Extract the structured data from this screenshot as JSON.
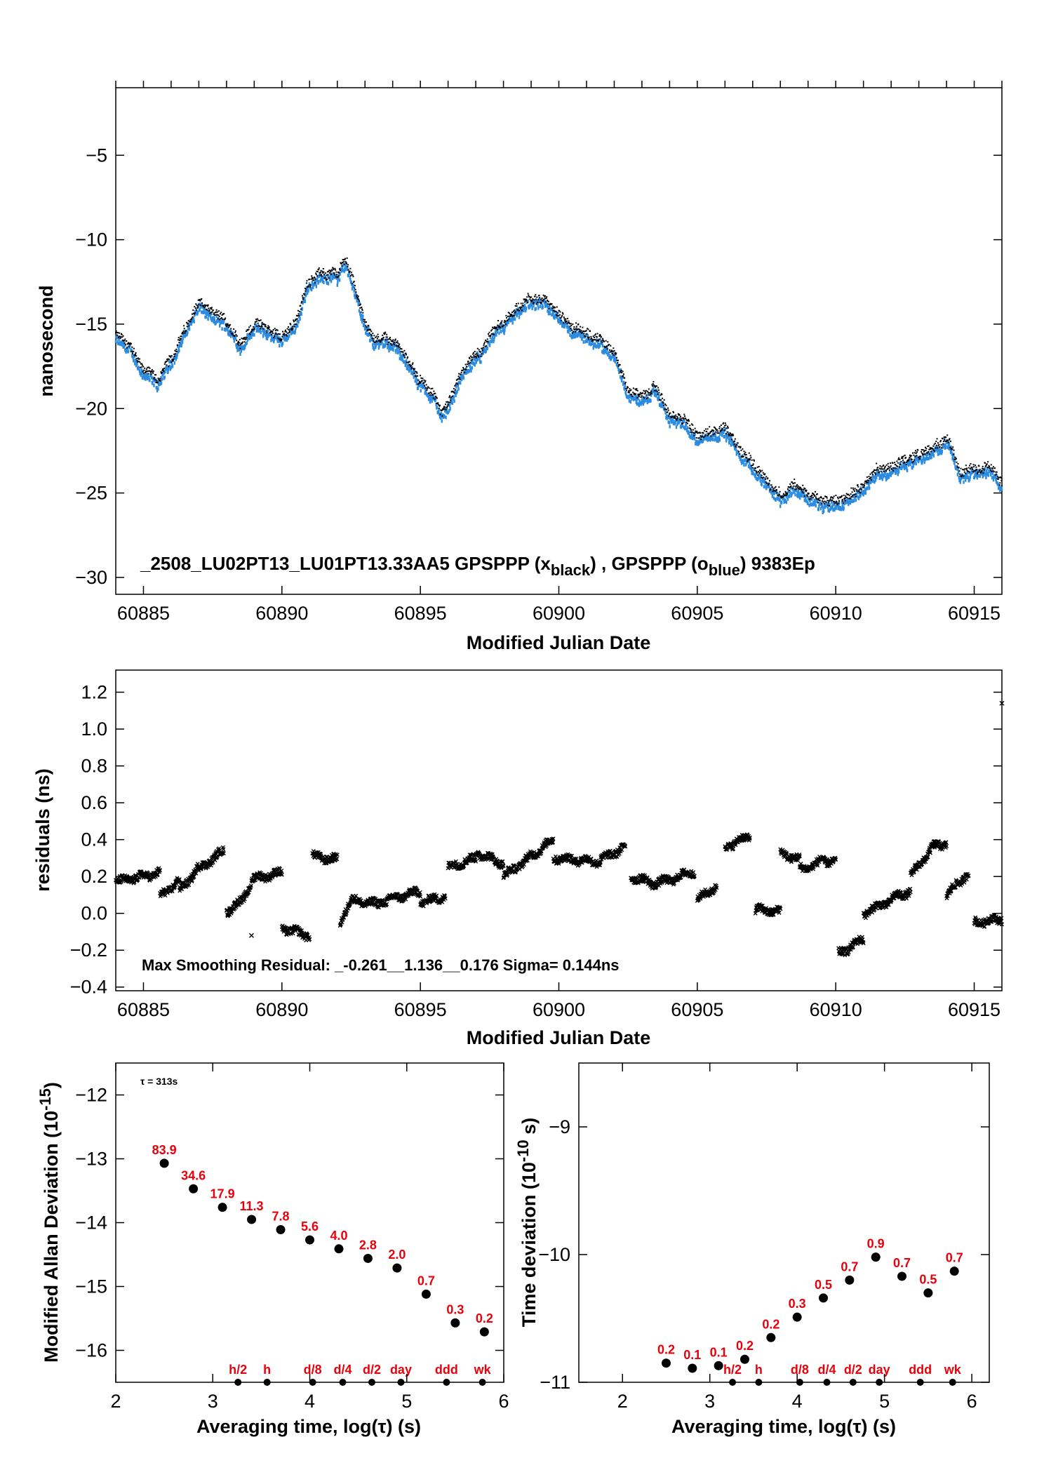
{
  "colors": {
    "black_series": "#000000",
    "blue_series": "#2a8be0",
    "labels": "#e8000b"
  },
  "panels": {
    "p1": {
      "ylabel": "nanosecond",
      "xlabel": "Modified Julian Date",
      "annotation": {
        "prefix": "_2508_LU02PT13_LU01PT13.33AA5     GPSPPP (x",
        "sub1": "black",
        "middle": ") ,  GPSPPP (o",
        "sub2": "blue",
        "suffix": ")  9383Ep"
      }
    },
    "p2": {
      "ylabel": "residuals (ns)",
      "xlabel": "Modified Julian Date",
      "annotation": "Max Smoothing Residual: _-0.261__1.136__0.176  Sigma= 0.144ns"
    },
    "p3": {
      "ylabel_main": "Modified Allan Deviation (10",
      "ylabel_sup": "-15",
      "ylabel_close": ")",
      "xlabel": "Averaging time, log(τ) (s)",
      "annotation": "τ = 313s"
    },
    "p4": {
      "ylabel_main": "Time deviation (10",
      "ylabel_sup": "-10",
      "ylabel_close": " s)",
      "xlabel": "Averaging time, log(τ) (s)"
    }
  },
  "chart_data": [
    {
      "type": "scatter",
      "xlabel": "Modified Julian Date",
      "ylabel": "nanosecond",
      "xlim": [
        60884,
        60916
      ],
      "ylim": [
        -31,
        -1
      ],
      "xticks": [
        60885,
        60890,
        60895,
        60900,
        60905,
        60910,
        60915
      ],
      "yticks": [
        -30,
        -25,
        -20,
        -15,
        -10,
        -5
      ],
      "series": [
        {
          "name": "GPSPPP (x black)",
          "color": "#000000",
          "points": [
            [
              60884.0,
              -15.6
            ],
            [
              60884.5,
              -16.3
            ],
            [
              60885.0,
              -17.6
            ],
            [
              60885.5,
              -18.4
            ],
            [
              60886.0,
              -17.0
            ],
            [
              60886.5,
              -15.3
            ],
            [
              60887.0,
              -13.7
            ],
            [
              60887.5,
              -14.4
            ],
            [
              60888.0,
              -14.8
            ],
            [
              60888.5,
              -16.1
            ],
            [
              60889.0,
              -14.9
            ],
            [
              60889.5,
              -15.3
            ],
            [
              60890.0,
              -15.8
            ],
            [
              60890.5,
              -14.8
            ],
            [
              60891.0,
              -12.3
            ],
            [
              60891.5,
              -11.9
            ],
            [
              60892.0,
              -12.0
            ],
            [
              60892.3,
              -11.1
            ],
            [
              60892.7,
              -13.0
            ],
            [
              60893.0,
              -15.1
            ],
            [
              60893.5,
              -16.0
            ],
            [
              60894.0,
              -15.8
            ],
            [
              60894.5,
              -17.1
            ],
            [
              60895.0,
              -18.3
            ],
            [
              60895.5,
              -19.2
            ],
            [
              60895.8,
              -20.3
            ],
            [
              60896.2,
              -18.9
            ],
            [
              60896.5,
              -17.8
            ],
            [
              60897.0,
              -16.9
            ],
            [
              60897.5,
              -15.8
            ],
            [
              60898.0,
              -14.9
            ],
            [
              60898.5,
              -14.2
            ],
            [
              60899.0,
              -13.4
            ],
            [
              60899.5,
              -13.7
            ],
            [
              60900.0,
              -14.3
            ],
            [
              60900.5,
              -15.2
            ],
            [
              60901.0,
              -15.6
            ],
            [
              60901.5,
              -15.9
            ],
            [
              60902.0,
              -16.5
            ],
            [
              60902.5,
              -18.9
            ],
            [
              60903.0,
              -19.3
            ],
            [
              60903.5,
              -18.8
            ],
            [
              60904.0,
              -20.4
            ],
            [
              60904.5,
              -20.6
            ],
            [
              60905.0,
              -21.6
            ],
            [
              60905.5,
              -21.3
            ],
            [
              60906.0,
              -21.1
            ],
            [
              60906.5,
              -22.4
            ],
            [
              60907.0,
              -23.3
            ],
            [
              60907.5,
              -24.2
            ],
            [
              60908.0,
              -25.1
            ],
            [
              60908.5,
              -24.4
            ],
            [
              60909.0,
              -25.0
            ],
            [
              60909.5,
              -25.5
            ],
            [
              60910.0,
              -25.6
            ],
            [
              60910.5,
              -25.1
            ],
            [
              60911.0,
              -24.4
            ],
            [
              60911.5,
              -23.7
            ],
            [
              60912.0,
              -23.4
            ],
            [
              60912.5,
              -23.0
            ],
            [
              60913.0,
              -22.7
            ],
            [
              60913.5,
              -22.4
            ],
            [
              60914.0,
              -21.6
            ],
            [
              60914.5,
              -23.8
            ],
            [
              60915.0,
              -23.3
            ],
            [
              60915.5,
              -23.4
            ],
            [
              60916.0,
              -24.3
            ]
          ]
        },
        {
          "name": "GPSPPP (o blue)",
          "color": "#2a8be0",
          "offset": -0.35
        }
      ]
    },
    {
      "type": "scatter",
      "xlabel": "Modified Julian Date",
      "ylabel": "residuals (ns)",
      "xlim": [
        60884,
        60916
      ],
      "ylim": [
        -0.42,
        1.32
      ],
      "xticks": [
        60885,
        60890,
        60895,
        60900,
        60905,
        60910,
        60915
      ],
      "yticks": [
        -0.4,
        -0.2,
        0.0,
        0.2,
        0.4,
        0.6,
        0.8,
        1.0,
        1.2
      ],
      "segments": [
        [
          60884.0,
          60885.6,
          0.17,
          0.22
        ],
        [
          60885.6,
          60886.3,
          0.09,
          0.18
        ],
        [
          60886.3,
          60887.0,
          0.12,
          0.25
        ],
        [
          60887.0,
          60887.9,
          0.24,
          0.34
        ],
        [
          60888.0,
          60888.6,
          0.01,
          0.07
        ],
        [
          60888.6,
          60889.0,
          0.08,
          0.2
        ],
        [
          60889.0,
          60890.0,
          0.19,
          0.22
        ],
        [
          60890.0,
          60891.0,
          -0.08,
          -0.12
        ],
        [
          60891.1,
          60892.0,
          0.31,
          0.29
        ],
        [
          60892.1,
          60892.5,
          -0.05,
          0.08
        ],
        [
          60892.5,
          60893.5,
          0.07,
          0.05
        ],
        [
          60893.5,
          60894.5,
          0.06,
          0.1
        ],
        [
          60894.5,
          60895.0,
          0.1,
          0.12
        ],
        [
          60895.0,
          60895.9,
          0.06,
          0.09
        ],
        [
          60896.0,
          60897.0,
          0.25,
          0.3
        ],
        [
          60897.0,
          60898.0,
          0.33,
          0.27
        ],
        [
          60898.0,
          60899.0,
          0.2,
          0.31
        ],
        [
          60899.0,
          60899.8,
          0.31,
          0.4
        ],
        [
          60899.8,
          60901.5,
          0.3,
          0.28
        ],
        [
          60901.5,
          60902.4,
          0.29,
          0.36
        ],
        [
          60902.6,
          60903.3,
          0.2,
          0.17
        ],
        [
          60903.3,
          60904.0,
          0.16,
          0.18
        ],
        [
          60904.0,
          60904.9,
          0.18,
          0.23
        ],
        [
          60905.0,
          60905.7,
          0.07,
          0.15
        ],
        [
          60906.0,
          60906.9,
          0.36,
          0.42
        ],
        [
          60907.1,
          60908.0,
          0.02,
          0.01
        ],
        [
          60908.0,
          60908.7,
          0.33,
          0.29
        ],
        [
          60908.7,
          60909.4,
          0.24,
          0.27
        ],
        [
          60909.4,
          60910.0,
          0.29,
          0.28
        ],
        [
          60910.1,
          60911.0,
          -0.22,
          -0.14
        ],
        [
          60911.0,
          60912.0,
          0.0,
          0.07
        ],
        [
          60912.0,
          60912.7,
          0.08,
          0.12
        ],
        [
          60912.7,
          60913.5,
          0.2,
          0.36
        ],
        [
          60913.5,
          60914.0,
          0.36,
          0.38
        ],
        [
          60914.0,
          60914.8,
          0.1,
          0.22
        ],
        [
          60915.0,
          60916.0,
          -0.05,
          -0.03
        ]
      ],
      "outliers": [
        [
          60888.9,
          -0.12
        ],
        [
          60916.0,
          1.14
        ]
      ]
    },
    {
      "type": "scatter",
      "xlabel": "Averaging time, log(τ) (s)",
      "ylabel": "Modified Allan Deviation (10^-15)",
      "xlim": [
        2,
        6
      ],
      "ylim": [
        -16.5,
        -11.5
      ],
      "xticks": [
        2,
        3,
        4,
        5,
        6
      ],
      "yticks": [
        -16,
        -15,
        -14,
        -13,
        -12
      ],
      "points": [
        {
          "x": 2.5,
          "y": -13.07,
          "label": "83.9"
        },
        {
          "x": 2.8,
          "y": -13.47,
          "label": "34.6"
        },
        {
          "x": 3.1,
          "y": -13.76,
          "label": "17.9"
        },
        {
          "x": 3.4,
          "y": -13.95,
          "label": "11.3"
        },
        {
          "x": 3.7,
          "y": -14.11,
          "label": "7.8"
        },
        {
          "x": 4.0,
          "y": -14.27,
          "label": "5.6"
        },
        {
          "x": 4.3,
          "y": -14.41,
          "label": "4.0"
        },
        {
          "x": 4.6,
          "y": -14.56,
          "label": "2.8"
        },
        {
          "x": 4.9,
          "y": -14.71,
          "label": "2.0"
        },
        {
          "x": 5.2,
          "y": -15.12,
          "label": "0.7"
        },
        {
          "x": 5.5,
          "y": -15.57,
          "label": "0.3"
        },
        {
          "x": 5.8,
          "y": -15.71,
          "label": "0.2"
        }
      ],
      "markers": [
        {
          "x": 3.26,
          "label": "h/2"
        },
        {
          "x": 3.56,
          "label": "h"
        },
        {
          "x": 4.03,
          "label": "d/8"
        },
        {
          "x": 4.34,
          "label": "d/4"
        },
        {
          "x": 4.64,
          "label": "d/2"
        },
        {
          "x": 4.94,
          "label": "day"
        },
        {
          "x": 5.41,
          "label": "ddd"
        },
        {
          "x": 5.78,
          "label": "wk"
        }
      ]
    },
    {
      "type": "scatter",
      "xlabel": "Averaging time, log(τ) (s)",
      "ylabel": "Time deviation (10^-10 s)",
      "xlim": [
        1.5,
        6.2
      ],
      "ylim": [
        -11.0,
        -8.5
      ],
      "xticks": [
        2,
        3,
        4,
        5,
        6
      ],
      "yticks": [
        -11,
        -10,
        -9
      ],
      "points": [
        {
          "x": 2.5,
          "y": -10.85,
          "label": "0.2"
        },
        {
          "x": 2.8,
          "y": -10.89,
          "label": "0.1"
        },
        {
          "x": 3.1,
          "y": -10.87,
          "label": "0.1"
        },
        {
          "x": 3.4,
          "y": -10.82,
          "label": "0.2"
        },
        {
          "x": 3.7,
          "y": -10.65,
          "label": "0.2"
        },
        {
          "x": 4.0,
          "y": -10.49,
          "label": "0.3"
        },
        {
          "x": 4.3,
          "y": -10.34,
          "label": "0.5"
        },
        {
          "x": 4.6,
          "y": -10.2,
          "label": "0.7"
        },
        {
          "x": 4.9,
          "y": -10.02,
          "label": "0.9"
        },
        {
          "x": 5.2,
          "y": -10.17,
          "label": "0.7"
        },
        {
          "x": 5.5,
          "y": -10.3,
          "label": "0.5"
        },
        {
          "x": 5.8,
          "y": -10.13,
          "label": "0.7"
        }
      ],
      "markers": [
        {
          "x": 3.26,
          "label": "h/2"
        },
        {
          "x": 3.56,
          "label": "h"
        },
        {
          "x": 4.03,
          "label": "d/8"
        },
        {
          "x": 4.34,
          "label": "d/4"
        },
        {
          "x": 4.64,
          "label": "d/2"
        },
        {
          "x": 4.94,
          "label": "day"
        },
        {
          "x": 5.41,
          "label": "ddd"
        },
        {
          "x": 5.78,
          "label": "wk"
        }
      ]
    }
  ]
}
